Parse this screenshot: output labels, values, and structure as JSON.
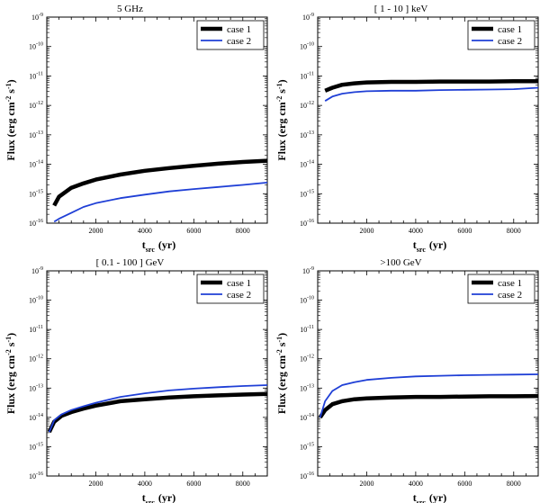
{
  "chart_data": [
    {
      "type": "line",
      "title": "5 GHz",
      "xlabel": "t",
      "xlabel_sub": "src",
      "xlabel_unit": "(yr)",
      "ylabel": "Flux (erg cm",
      "ylabel_exp1": "-2",
      "ylabel_mid": " s",
      "ylabel_exp2": "-1",
      "ylabel_end": ")",
      "ylog": true,
      "xlim": [
        0,
        9000
      ],
      "ylim_exp": [
        -16,
        -9
      ],
      "xticks": [
        2000,
        4000,
        6000,
        8000
      ],
      "xtick_labels": [
        "2000",
        "4000",
        "6000",
        "8000"
      ],
      "ytick_exps": [
        -16,
        -15,
        -14,
        -13,
        -12,
        -11,
        -10,
        -9
      ],
      "ytick_base": "10",
      "ytick_labels": [
        "-16",
        "-15",
        "-14",
        "-13",
        "-12",
        "-11",
        "-10",
        "-9"
      ],
      "series": [
        {
          "name": "case 1",
          "color": "#000000",
          "style": "thick",
          "x": [
            300,
            500,
            1000,
            1500,
            2000,
            3000,
            4000,
            5000,
            6000,
            7000,
            8000,
            9000
          ],
          "y_exp": [
            -15.4,
            -15.1,
            -14.8,
            -14.65,
            -14.52,
            -14.35,
            -14.22,
            -14.13,
            -14.05,
            -13.98,
            -13.92,
            -13.88
          ]
        },
        {
          "name": "case 2",
          "color": "#1f3fd6",
          "style": "thin",
          "x": [
            300,
            500,
            1000,
            1500,
            2000,
            3000,
            4000,
            5000,
            6000,
            7000,
            8000,
            9000
          ],
          "y_exp": [
            -15.95,
            -15.85,
            -15.65,
            -15.45,
            -15.32,
            -15.15,
            -15.03,
            -14.92,
            -14.84,
            -14.77,
            -14.7,
            -14.62
          ]
        }
      ]
    },
    {
      "type": "line",
      "title": "[ 1 - 10 ] keV",
      "xlabel": "t",
      "xlabel_sub": "src",
      "xlabel_unit": "(yr)",
      "ylabel": "Flux (erg cm",
      "ylabel_exp1": "-2",
      "ylabel_mid": " s",
      "ylabel_exp2": "-1",
      "ylabel_end": ")",
      "ylog": true,
      "xlim": [
        0,
        9000
      ],
      "ylim_exp": [
        -16,
        -9
      ],
      "xticks": [
        2000,
        4000,
        6000,
        8000
      ],
      "xtick_labels": [
        "2000",
        "4000",
        "6000",
        "8000"
      ],
      "ytick_exps": [
        -16,
        -15,
        -14,
        -13,
        -12,
        -11,
        -10,
        -9
      ],
      "ytick_base": "10",
      "ytick_labels": [
        "-16",
        "-15",
        "-14",
        "-13",
        "-12",
        "-11",
        "-10",
        "-9"
      ],
      "series": [
        {
          "name": "case 1",
          "color": "#000000",
          "style": "thick",
          "x": [
            300,
            600,
            1000,
            1500,
            2000,
            3000,
            4000,
            5000,
            6000,
            7000,
            8000,
            9000
          ],
          "y_exp": [
            -11.5,
            -11.4,
            -11.3,
            -11.25,
            -11.22,
            -11.2,
            -11.2,
            -11.19,
            -11.19,
            -11.19,
            -11.18,
            -11.18
          ]
        },
        {
          "name": "case 2",
          "color": "#1f3fd6",
          "style": "thin",
          "x": [
            300,
            600,
            1000,
            1500,
            2000,
            3000,
            4000,
            5000,
            6000,
            7000,
            8000,
            9000
          ],
          "y_exp": [
            -11.85,
            -11.7,
            -11.6,
            -11.55,
            -11.52,
            -11.5,
            -11.5,
            -11.48,
            -11.47,
            -11.46,
            -11.45,
            -11.4
          ]
        }
      ]
    },
    {
      "type": "line",
      "title": "[ 0.1 - 100 ] GeV",
      "xlabel": "t",
      "xlabel_sub": "src",
      "xlabel_unit": "(yr)",
      "ylabel": "Flux (erg cm",
      "ylabel_exp1": "-2",
      "ylabel_mid": " s",
      "ylabel_exp2": "-1",
      "ylabel_end": ")",
      "ylog": true,
      "xlim": [
        0,
        9000
      ],
      "ylim_exp": [
        -16,
        -9
      ],
      "xticks": [
        2000,
        4000,
        6000,
        8000
      ],
      "xtick_labels": [
        "2000",
        "4000",
        "6000",
        "8000"
      ],
      "ytick_exps": [
        -16,
        -15,
        -14,
        -13,
        -12,
        -11,
        -10,
        -9
      ],
      "ytick_base": "10",
      "ytick_labels": [
        "-16",
        "-15",
        "-14",
        "-13",
        "-12",
        "-11",
        "-10",
        "-9"
      ],
      "series": [
        {
          "name": "case 1",
          "color": "#000000",
          "style": "thick",
          "x": [
            100,
            300,
            600,
            1000,
            1500,
            2000,
            3000,
            4000,
            5000,
            6000,
            7000,
            8000,
            9000
          ],
          "y_exp": [
            -14.5,
            -14.15,
            -13.95,
            -13.82,
            -13.7,
            -13.6,
            -13.45,
            -13.38,
            -13.32,
            -13.28,
            -13.25,
            -13.22,
            -13.2
          ]
        },
        {
          "name": "case 2",
          "color": "#1f3fd6",
          "style": "thin",
          "x": [
            100,
            300,
            600,
            1000,
            1500,
            2000,
            3000,
            4000,
            5000,
            6000,
            7000,
            8000,
            9000
          ],
          "y_exp": [
            -14.5,
            -14.1,
            -13.9,
            -13.75,
            -13.62,
            -13.5,
            -13.3,
            -13.18,
            -13.08,
            -13.02,
            -12.97,
            -12.93,
            -12.9
          ]
        }
      ]
    },
    {
      "type": "line",
      "title": ">100 GeV",
      "xlabel": "t",
      "xlabel_sub": "src",
      "xlabel_unit": "(yr)",
      "ylabel": "Flux (erg cm",
      "ylabel_exp1": "-2",
      "ylabel_mid": " s",
      "ylabel_exp2": "-1",
      "ylabel_end": ")",
      "ylog": true,
      "xlim": [
        0,
        9000
      ],
      "ylim_exp": [
        -16,
        -9
      ],
      "xticks": [
        2000,
        4000,
        6000,
        8000
      ],
      "xtick_labels": [
        "2000",
        "4000",
        "6000",
        "8000"
      ],
      "ytick_exps": [
        -16,
        -15,
        -14,
        -13,
        -12,
        -11,
        -10,
        -9
      ],
      "ytick_base": "10",
      "ytick_labels": [
        "-16",
        "-15",
        "-14",
        "-13",
        "-12",
        "-11",
        "-10",
        "-9"
      ],
      "series": [
        {
          "name": "case 1",
          "color": "#000000",
          "style": "thick",
          "x": [
            100,
            300,
            600,
            1000,
            1500,
            2000,
            3000,
            4000,
            5000,
            6000,
            7000,
            8000,
            9000
          ],
          "y_exp": [
            -14.0,
            -13.75,
            -13.55,
            -13.45,
            -13.38,
            -13.35,
            -13.32,
            -13.3,
            -13.3,
            -13.29,
            -13.28,
            -13.28,
            -13.27
          ]
        },
        {
          "name": "case 2",
          "color": "#1f3fd6",
          "style": "thin",
          "x": [
            100,
            300,
            600,
            1000,
            1500,
            2000,
            3000,
            4000,
            5000,
            6000,
            7000,
            8000,
            9000
          ],
          "y_exp": [
            -14.0,
            -13.45,
            -13.1,
            -12.9,
            -12.8,
            -12.72,
            -12.65,
            -12.6,
            -12.58,
            -12.56,
            -12.55,
            -12.54,
            -12.53
          ]
        }
      ]
    }
  ]
}
